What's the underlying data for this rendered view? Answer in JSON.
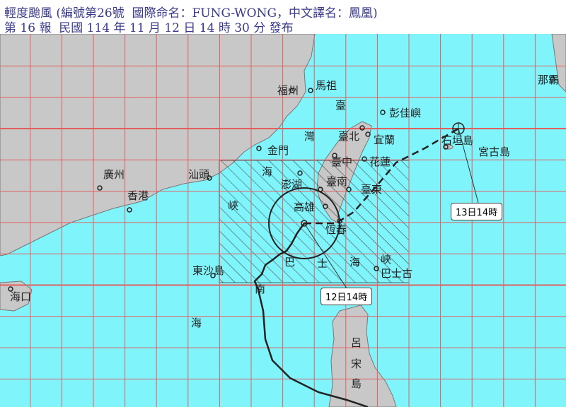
{
  "header": {
    "line1": "輕度颱風 (編號第26號  國際命名：FUNG-WONG，中文譯名：鳳凰)",
    "line2": "第 16 報  民國 114 年 11 月 12 日 14 時 30 分 發布"
  },
  "colors": {
    "sea": "#80f4fb",
    "land": "#c8c8c8",
    "grid": "#e06060",
    "track": "#222222",
    "title": "#3a3a8a"
  },
  "places": {
    "fuzhou": "福州",
    "mazu": "馬祖",
    "pengjia": "彭佳嶼",
    "taipei": "臺北",
    "yilan": "宜蘭",
    "kinmen": "金門",
    "guangzhou": "廣州",
    "hongkong": "香港",
    "shantou": "汕頭",
    "penghu": "澎湖",
    "taichung": "臺中",
    "hualien": "花蓮",
    "tainan": "臺南",
    "taitung": "臺東",
    "kaohsiung": "高雄",
    "hengchun": "恆春",
    "dongsha": "東沙島",
    "haikou": "海口",
    "ishigaki": "石垣島",
    "miyako": "宮古島",
    "naha": "那霸",
    "luzon": [
      "呂",
      "宋",
      "島"
    ],
    "strait_tw": [
      "臺",
      "灣",
      "海",
      "峽"
    ],
    "bashi": [
      "巴",
      "士",
      "海",
      "峽"
    ],
    "scs": [
      "南",
      "海"
    ],
    "batanes": "巴士古"
  },
  "forecast": {
    "current_time": "12日14時",
    "forecast_time": "13日14時"
  }
}
